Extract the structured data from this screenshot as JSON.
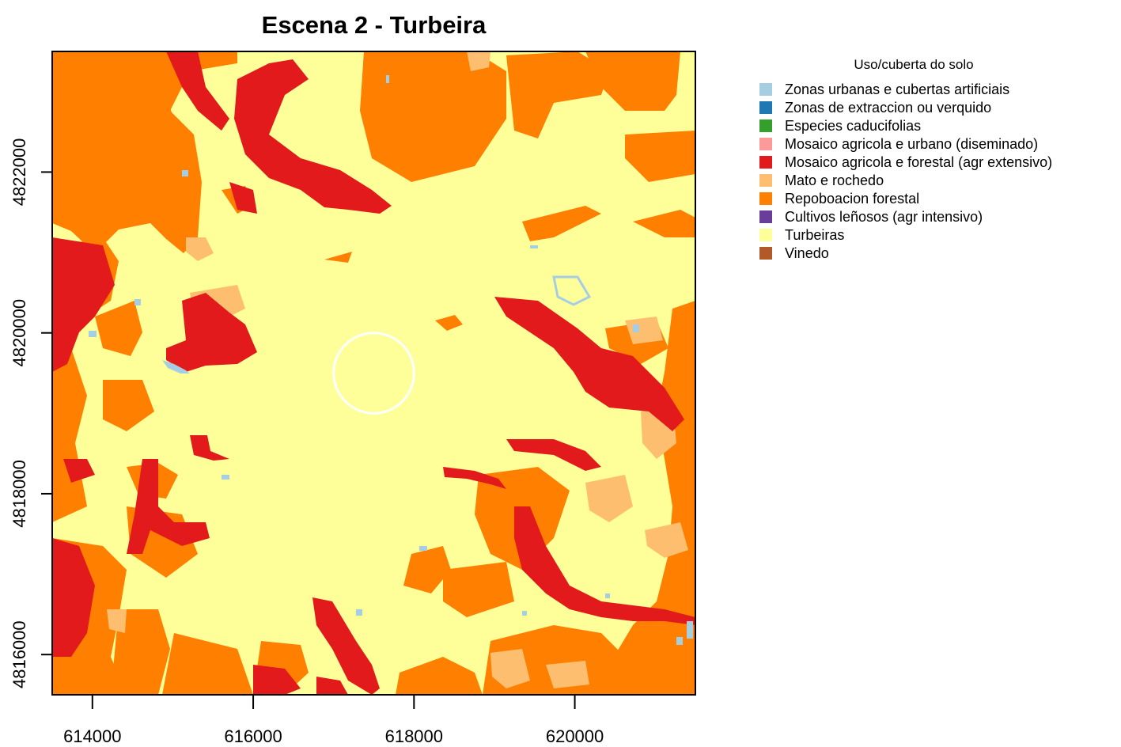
{
  "title": "Escena 2 - Turbeira",
  "chart_data": {
    "type": "heatmap",
    "title": "Escena 2 - Turbeira",
    "xlim": [
      613500,
      621500
    ],
    "ylim": [
      4815500,
      4823500
    ],
    "x_ticks": [
      "614000",
      "616000",
      "618000",
      "620000"
    ],
    "y_ticks": [
      "4816000",
      "4818000",
      "4820000",
      "4822000"
    ],
    "marker": {
      "shape": "circle",
      "center": [
        617500,
        4819500
      ],
      "radius": 500,
      "color": "#ffffff"
    },
    "legend": {
      "title": "Uso/cuberta do solo",
      "placement": "right",
      "items": [
        {
          "label": "Zonas urbanas e cubertas artificiais",
          "color": "#a6cee3"
        },
        {
          "label": "Zonas de extraccion ou verquido",
          "color": "#1f78b4"
        },
        {
          "label": "Especies caducifolias",
          "color": "#33a02c"
        },
        {
          "label": "Mosaico agricola e urbano (diseminado)",
          "color": "#fb9a99"
        },
        {
          "label": "Mosaico agricola e forestal (agr extensivo)",
          "color": "#e31a1c"
        },
        {
          "label": "Mato e rochedo",
          "color": "#fdbf6f"
        },
        {
          "label": "Repoboacion forestal",
          "color": "#ff7f00"
        },
        {
          "label": "Cultivos leñosos (agr intensivo)",
          "color": "#6a3d9a"
        },
        {
          "label": "Turbeiras",
          "color": "#ffff99"
        },
        {
          "label": "Vinedo",
          "color": "#b15928"
        }
      ]
    }
  }
}
